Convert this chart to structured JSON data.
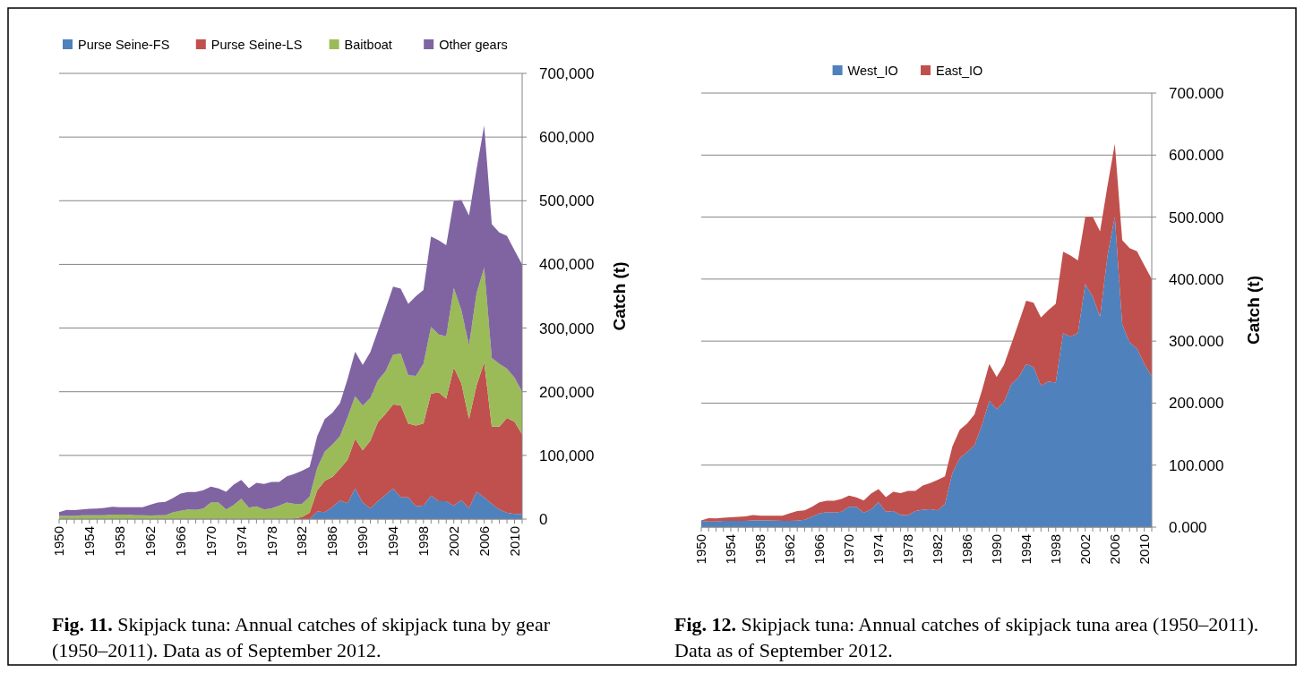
{
  "chart_data": [
    {
      "type": "area",
      "stacked": true,
      "x": [
        1950,
        1951,
        1952,
        1953,
        1954,
        1955,
        1956,
        1957,
        1958,
        1959,
        1960,
        1961,
        1962,
        1963,
        1964,
        1965,
        1966,
        1967,
        1968,
        1969,
        1970,
        1971,
        1972,
        1973,
        1974,
        1975,
        1976,
        1977,
        1978,
        1979,
        1980,
        1981,
        1982,
        1983,
        1984,
        1985,
        1986,
        1987,
        1988,
        1989,
        1990,
        1991,
        1992,
        1993,
        1994,
        1995,
        1996,
        1997,
        1998,
        1999,
        2000,
        2001,
        2002,
        2003,
        2004,
        2005,
        2006,
        2007,
        2008,
        2009,
        2010,
        2011
      ],
      "xlim": [
        1950,
        2011
      ],
      "xticks": [
        1950,
        1954,
        1958,
        1962,
        1966,
        1970,
        1974,
        1978,
        1982,
        1986,
        1990,
        1994,
        1998,
        2002,
        2006,
        2010
      ],
      "ylim": [
        0,
        700000
      ],
      "yticks": [
        {
          "value": 0,
          "label": "0"
        },
        {
          "value": 100000,
          "label": "100,000"
        },
        {
          "value": 200000,
          "label": "200,000"
        },
        {
          "value": 300000,
          "label": "300,000"
        },
        {
          "value": 400000,
          "label": "400,000"
        },
        {
          "value": 500000,
          "label": "500,000"
        },
        {
          "value": 600000,
          "label": "600,000"
        },
        {
          "value": 700000,
          "label": "700,000"
        }
      ],
      "ylabel": "Catch (t)",
      "grid": "y",
      "legend": "top",
      "annotations": [
        "Fig. 11. Skipjack tuna: Annual catches of skipjack tuna by gear (1950–2011). Data as of September 2012."
      ],
      "series": [
        {
          "name": "Purse Seine-FS",
          "color": "#4f81bd",
          "values": [
            0,
            0,
            0,
            0,
            0,
            0,
            0,
            0,
            0,
            0,
            0,
            0,
            0,
            0,
            0,
            0,
            0,
            0,
            0,
            0,
            0,
            0,
            0,
            0,
            0,
            0,
            0,
            0,
            0,
            0,
            0,
            0,
            0,
            0,
            12000,
            11000,
            19000,
            29000,
            25000,
            48000,
            26000,
            17000,
            28000,
            38000,
            48000,
            34000,
            34000,
            20000,
            21000,
            37000,
            28000,
            28000,
            21000,
            30000,
            17000,
            43000,
            34000,
            24000,
            15000,
            10000,
            8000,
            8000
          ]
        },
        {
          "name": "Purse Seine-LS",
          "color": "#c0504d",
          "values": [
            0,
            0,
            0,
            0,
            0,
            0,
            0,
            0,
            0,
            0,
            0,
            0,
            0,
            0,
            0,
            0,
            0,
            0,
            0,
            0,
            0,
            0,
            0,
            0,
            0,
            0,
            0,
            0,
            0,
            0,
            0,
            1000,
            3000,
            10000,
            33000,
            49000,
            47000,
            50000,
            68000,
            78000,
            82000,
            106000,
            124000,
            127000,
            132000,
            145000,
            116000,
            127000,
            129000,
            160000,
            171000,
            161000,
            217000,
            183000,
            140000,
            167000,
            212000,
            121000,
            130000,
            149000,
            145000,
            125000
          ]
        },
        {
          "name": "Baitboat",
          "color": "#9bbb59",
          "values": [
            5000,
            5000,
            5000,
            6000,
            6000,
            6000,
            6000,
            7000,
            7000,
            7000,
            6000,
            6000,
            5500,
            6000,
            6000,
            10500,
            13000,
            15000,
            14500,
            16500,
            26000,
            26000,
            15000,
            22000,
            32000,
            18000,
            20000,
            15000,
            17000,
            21000,
            26000,
            23000,
            21000,
            25000,
            35000,
            46000,
            51000,
            51000,
            67000,
            67000,
            70000,
            67000,
            66000,
            67000,
            78000,
            81000,
            76000,
            78000,
            94000,
            105000,
            91000,
            98000,
            125000,
            115000,
            116000,
            145000,
            149000,
            108000,
            99000,
            77000,
            69000,
            67000
          ]
        },
        {
          "name": "Other gears",
          "color": "#8064a2",
          "values": [
            6000,
            9500,
            9000,
            9000,
            10000,
            10500,
            11500,
            12500,
            11500,
            11500,
            12500,
            12500,
            17000,
            20000,
            21000,
            22500,
            27000,
            27500,
            28000,
            29000,
            25000,
            22000,
            28000,
            32000,
            29500,
            30500,
            37000,
            40000,
            41500,
            37500,
            41000,
            47000,
            52000,
            47000,
            50000,
            51000,
            50000,
            52000,
            60000,
            70000,
            64000,
            72000,
            78000,
            98000,
            107000,
            102000,
            112000,
            125000,
            116000,
            142000,
            148000,
            143000,
            137000,
            173000,
            204000,
            195000,
            223000,
            210000,
            206000,
            209000,
            200000,
            200000
          ]
        }
      ]
    },
    {
      "type": "area",
      "stacked": true,
      "x": [
        1950,
        1951,
        1952,
        1953,
        1954,
        1955,
        1956,
        1957,
        1958,
        1959,
        1960,
        1961,
        1962,
        1963,
        1964,
        1965,
        1966,
        1967,
        1968,
        1969,
        1970,
        1971,
        1972,
        1973,
        1974,
        1975,
        1976,
        1977,
        1978,
        1979,
        1980,
        1981,
        1982,
        1983,
        1984,
        1985,
        1986,
        1987,
        1988,
        1989,
        1990,
        1991,
        1992,
        1993,
        1994,
        1995,
        1996,
        1997,
        1998,
        1999,
        2000,
        2001,
        2002,
        2003,
        2004,
        2005,
        2006,
        2007,
        2008,
        2009,
        2010,
        2011
      ],
      "xlim": [
        1950,
        2011
      ],
      "xticks": [
        1950,
        1954,
        1958,
        1962,
        1966,
        1970,
        1974,
        1978,
        1982,
        1986,
        1990,
        1994,
        1998,
        2002,
        2006,
        2010
      ],
      "ylim": [
        0,
        700
      ],
      "yticks": [
        {
          "value": 0,
          "label": "0.000"
        },
        {
          "value": 100,
          "label": "100.000"
        },
        {
          "value": 200,
          "label": "200.000"
        },
        {
          "value": 300,
          "label": "300.000"
        },
        {
          "value": 400,
          "label": "400.000"
        },
        {
          "value": 500,
          "label": "500.000"
        },
        {
          "value": 600,
          "label": "600.000"
        },
        {
          "value": 700,
          "label": "700.000"
        }
      ],
      "ylabel": "Catch (t)",
      "grid": "y",
      "legend": "top",
      "annotations": [
        "Fig. 12. Skipjack tuna: Annual catches of skipjack tuna area (1950–2011). Data as of September 2012."
      ],
      "series": [
        {
          "name": "West_IO",
          "color": "#4f81bd",
          "values": [
            10,
            9,
            9,
            10,
            10,
            10,
            10,
            11,
            11,
            11,
            10.5,
            10,
            10,
            10.5,
            12,
            17,
            22,
            24,
            23.5,
            25,
            33,
            33,
            23,
            29,
            40,
            25,
            26,
            20,
            19,
            26,
            28,
            29,
            27,
            37,
            87,
            111,
            121,
            132,
            164,
            204,
            190,
            202,
            231,
            242,
            263,
            258,
            228,
            235,
            233,
            313,
            307,
            313,
            392,
            372,
            339,
            437,
            501,
            327,
            298,
            288,
            263,
            243
          ]
        },
        {
          "name": "East_IO",
          "color": "#c0504d",
          "values": [
            1,
            5.5,
            5,
            5,
            6,
            6.5,
            7.5,
            8.5,
            7.5,
            7.5,
            8,
            8.5,
            12.5,
            15.5,
            15,
            16,
            18,
            18.5,
            19,
            20.5,
            18,
            15,
            20,
            25,
            21.5,
            23.5,
            31,
            35,
            39.5,
            32.5,
            39,
            42,
            49,
            45,
            43,
            46,
            46,
            50,
            56,
            59,
            52,
            60,
            65,
            88,
            102,
            104,
            110,
            115,
            127,
            131,
            131,
            117,
            108,
            129,
            138,
            113,
            117,
            136,
            152,
            157,
            159,
            157
          ]
        }
      ]
    }
  ]
}
